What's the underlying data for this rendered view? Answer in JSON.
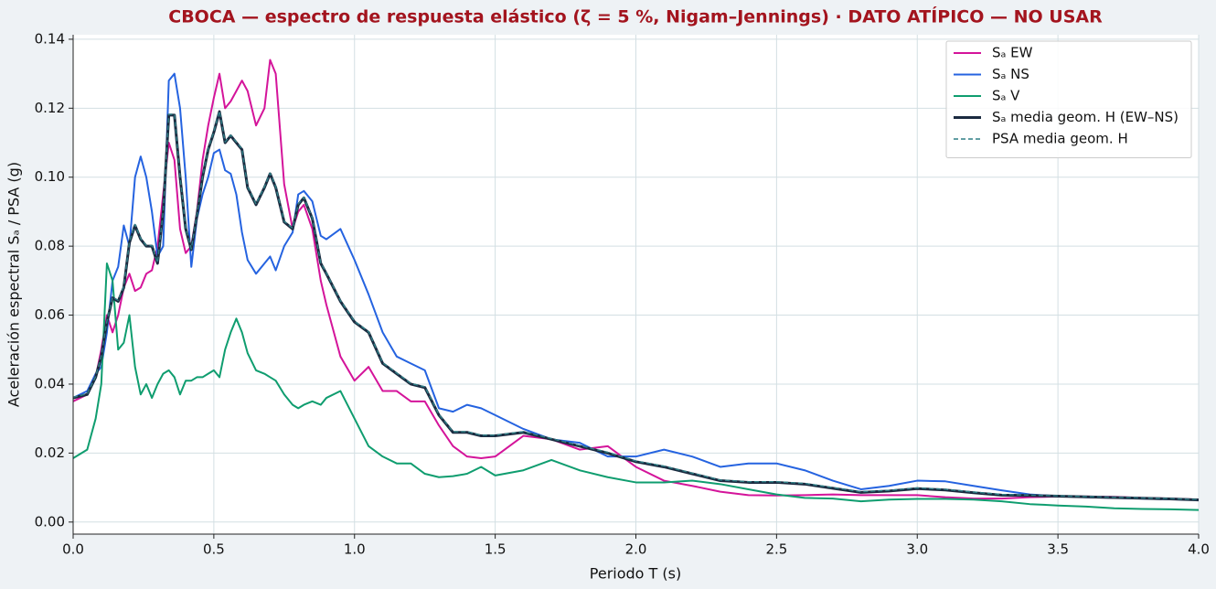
{
  "chart_data": {
    "type": "line",
    "title": "CBOCA — espectro de respuesta elástico (ζ = 5 %, Nigam–Jennings)  ·  DATO ATÍPICO — NO USAR",
    "xlabel": "Periodo T (s)",
    "ylabel": "Aceleración espectral Sₐ / PSA (g)",
    "x": [
      0,
      0.05,
      0.08,
      0.1,
      0.12,
      0.14,
      0.16,
      0.18,
      0.2,
      0.22,
      0.24,
      0.26,
      0.28,
      0.3,
      0.32,
      0.34,
      0.36,
      0.38,
      0.4,
      0.42,
      0.44,
      0.46,
      0.48,
      0.5,
      0.52,
      0.54,
      0.56,
      0.58,
      0.6,
      0.62,
      0.65,
      0.68,
      0.7,
      0.72,
      0.75,
      0.78,
      0.8,
      0.82,
      0.85,
      0.88,
      0.9,
      0.95,
      1.0,
      1.05,
      1.1,
      1.15,
      1.2,
      1.25,
      1.3,
      1.35,
      1.4,
      1.45,
      1.5,
      1.6,
      1.7,
      1.8,
      1.9,
      2.0,
      2.1,
      2.2,
      2.3,
      2.4,
      2.5,
      2.6,
      2.7,
      2.8,
      2.9,
      3.0,
      3.1,
      3.2,
      3.3,
      3.4,
      3.5,
      3.6,
      3.7,
      3.8,
      3.9,
      4.0
    ],
    "series": [
      {
        "name": "Sₐ EW",
        "color": "#d4149a",
        "width": 2,
        "values": [
          0.035,
          0.037,
          0.042,
          0.05,
          0.06,
          0.055,
          0.06,
          0.068,
          0.072,
          0.067,
          0.068,
          0.072,
          0.073,
          0.08,
          0.095,
          0.11,
          0.105,
          0.085,
          0.078,
          0.08,
          0.09,
          0.105,
          0.115,
          0.123,
          0.13,
          0.12,
          0.122,
          0.125,
          0.128,
          0.125,
          0.115,
          0.12,
          0.134,
          0.13,
          0.098,
          0.085,
          0.09,
          0.092,
          0.085,
          0.07,
          0.063,
          0.048,
          0.041,
          0.045,
          0.038,
          0.038,
          0.035,
          0.035,
          0.028,
          0.022,
          0.019,
          0.0185,
          0.019,
          0.025,
          0.024,
          0.021,
          0.022,
          0.016,
          0.012,
          0.0105,
          0.0088,
          0.0078,
          0.0077,
          0.0078,
          0.008,
          0.0078,
          0.0078,
          0.0078,
          0.0072,
          0.0068,
          0.0068,
          0.0072,
          0.0074,
          0.0074,
          0.0073,
          0.007,
          0.0068,
          0.0065
        ]
      },
      {
        "name": "Sₐ NS",
        "color": "#2563e0",
        "width": 2,
        "values": [
          0.036,
          0.038,
          0.043,
          0.045,
          0.055,
          0.07,
          0.074,
          0.086,
          0.08,
          0.1,
          0.106,
          0.1,
          0.09,
          0.077,
          0.08,
          0.128,
          0.13,
          0.12,
          0.1,
          0.074,
          0.088,
          0.095,
          0.1,
          0.107,
          0.108,
          0.102,
          0.101,
          0.095,
          0.084,
          0.076,
          0.072,
          0.075,
          0.077,
          0.073,
          0.08,
          0.084,
          0.095,
          0.096,
          0.093,
          0.083,
          0.082,
          0.085,
          0.076,
          0.066,
          0.055,
          0.048,
          0.046,
          0.044,
          0.033,
          0.032,
          0.034,
          0.033,
          0.031,
          0.027,
          0.024,
          0.023,
          0.019,
          0.019,
          0.021,
          0.019,
          0.016,
          0.017,
          0.017,
          0.015,
          0.012,
          0.0095,
          0.0105,
          0.012,
          0.0118,
          0.0105,
          0.0092,
          0.008,
          0.0075,
          0.0072,
          0.007,
          0.0068,
          0.0066,
          0.0064
        ]
      },
      {
        "name": "Sₐ V",
        "color": "#0f9d6f",
        "width": 2,
        "values": [
          0.0185,
          0.021,
          0.03,
          0.04,
          0.075,
          0.07,
          0.05,
          0.052,
          0.06,
          0.045,
          0.037,
          0.04,
          0.036,
          0.04,
          0.043,
          0.044,
          0.042,
          0.037,
          0.041,
          0.041,
          0.042,
          0.042,
          0.043,
          0.044,
          0.042,
          0.05,
          0.055,
          0.059,
          0.055,
          0.049,
          0.044,
          0.043,
          0.042,
          0.041,
          0.037,
          0.034,
          0.033,
          0.034,
          0.035,
          0.034,
          0.036,
          0.038,
          0.03,
          0.022,
          0.019,
          0.017,
          0.017,
          0.014,
          0.013,
          0.0133,
          0.014,
          0.016,
          0.0135,
          0.015,
          0.018,
          0.015,
          0.013,
          0.0115,
          0.0115,
          0.012,
          0.011,
          0.0095,
          0.008,
          0.007,
          0.0068,
          0.006,
          0.0065,
          0.0067,
          0.0067,
          0.0065,
          0.006,
          0.0052,
          0.0048,
          0.0045,
          0.004,
          0.0038,
          0.0037,
          0.0035
        ]
      },
      {
        "name": "Sₐ media geom. H (EW–NS)",
        "color": "#1b2b40",
        "width": 3,
        "values": [
          0.036,
          0.037,
          0.042,
          0.048,
          0.058,
          0.065,
          0.064,
          0.068,
          0.081,
          0.086,
          0.082,
          0.08,
          0.08,
          0.075,
          0.09,
          0.118,
          0.118,
          0.1,
          0.085,
          0.079,
          0.089,
          0.1,
          0.108,
          0.113,
          0.119,
          0.11,
          0.112,
          0.11,
          0.108,
          0.097,
          0.092,
          0.097,
          0.101,
          0.097,
          0.087,
          0.085,
          0.092,
          0.094,
          0.088,
          0.075,
          0.072,
          0.064,
          0.058,
          0.055,
          0.046,
          0.043,
          0.04,
          0.039,
          0.031,
          0.026,
          0.026,
          0.025,
          0.025,
          0.026,
          0.024,
          0.022,
          0.02,
          0.0175,
          0.016,
          0.014,
          0.012,
          0.0115,
          0.0115,
          0.011,
          0.0098,
          0.0086,
          0.009,
          0.0097,
          0.0093,
          0.0085,
          0.0078,
          0.0077,
          0.0075,
          0.0073,
          0.0071,
          0.0069,
          0.0067,
          0.0064
        ]
      },
      {
        "name": "PSA media geom. H",
        "color": "#2f7f86",
        "width": 1.4,
        "dash": "5 3",
        "values": [
          0.0362,
          0.0372,
          0.0422,
          0.0482,
          0.0583,
          0.0652,
          0.0643,
          0.0683,
          0.0813,
          0.0863,
          0.0822,
          0.0802,
          0.0802,
          0.0752,
          0.0902,
          0.1182,
          0.1183,
          0.1002,
          0.0852,
          0.0792,
          0.0892,
          0.1002,
          0.1082,
          0.1132,
          0.1192,
          0.1102,
          0.1122,
          0.1102,
          0.1082,
          0.0972,
          0.0922,
          0.0972,
          0.1012,
          0.0972,
          0.0872,
          0.0852,
          0.0922,
          0.0942,
          0.0882,
          0.0752,
          0.0722,
          0.0642,
          0.0582,
          0.0552,
          0.0462,
          0.0432,
          0.0402,
          0.0392,
          0.0312,
          0.0262,
          0.0262,
          0.0252,
          0.0252,
          0.0262,
          0.0242,
          0.0222,
          0.0202,
          0.0177,
          0.0162,
          0.0142,
          0.0122,
          0.0117,
          0.0117,
          0.0112,
          0.01,
          0.0088,
          0.0092,
          0.0099,
          0.0095,
          0.0087,
          0.008,
          0.0078,
          0.0076,
          0.0074,
          0.0072,
          0.007,
          0.0068,
          0.0065
        ]
      }
    ],
    "xlim": [
      0,
      4
    ],
    "ylim": [
      -0.0035,
      0.1413
    ],
    "xticks": [
      {
        "value": 0,
        "label": "0.0"
      },
      0.5,
      {
        "value": 1,
        "label": "1.0"
      },
      1.5,
      {
        "value": 2,
        "label": "2.0"
      },
      2.5,
      {
        "value": 3,
        "label": "3.0"
      },
      3.5,
      {
        "value": 4,
        "label": "4.0"
      }
    ],
    "yticks": [
      {
        "value": 0,
        "label": "0.00"
      },
      {
        "value": 0.02,
        "label": "0.02"
      },
      {
        "value": 0.04,
        "label": "0.04"
      },
      {
        "value": 0.06,
        "label": "0.06"
      },
      {
        "value": 0.08,
        "label": "0.08"
      },
      {
        "value": 0.1,
        "label": "0.10"
      },
      {
        "value": 0.12,
        "label": "0.12"
      },
      {
        "value": 0.14,
        "label": "0.14"
      }
    ],
    "grid": true,
    "legend": "upper right",
    "title_color": "#a3141e"
  }
}
